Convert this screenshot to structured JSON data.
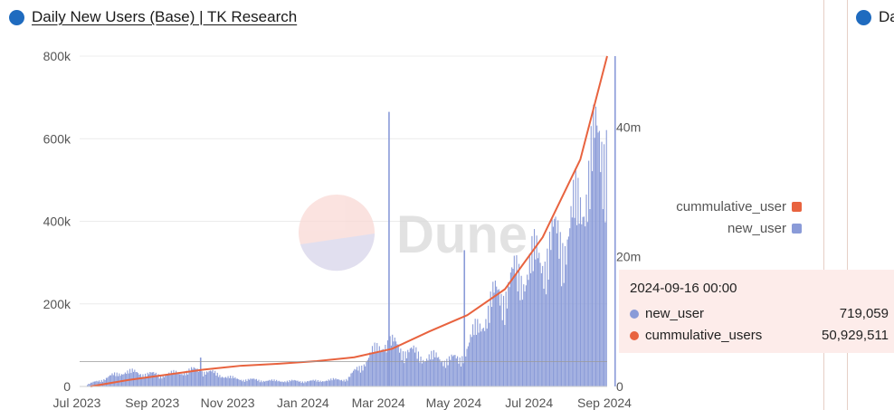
{
  "header": {
    "title": "Daily New Users (Base) | TK Research",
    "second_title_partial": "Da",
    "icon_color": "#1f6bbf"
  },
  "watermark": {
    "text": "Dune"
  },
  "legend": {
    "items": [
      {
        "label": "cummulative_user",
        "color": "#e8633f"
      },
      {
        "label": "new_user",
        "color": "#8a9bd8"
      }
    ]
  },
  "tooltip": {
    "date": "2024-09-16 00:00",
    "rows": [
      {
        "label": "new_user",
        "value": "719,059",
        "color": "#8a9bd8"
      },
      {
        "label": "cummulative_users",
        "value": "50,929,511",
        "color": "#e8633f"
      }
    ]
  },
  "chart_data": {
    "type": "bar",
    "title": "Daily New Users (Base) | TK Research",
    "x_ticks": [
      "Jul 2023",
      "Sep 2023",
      "Nov 2023",
      "Jan 2024",
      "Mar 2024",
      "May 2024",
      "Jul 2024",
      "Sep 2024"
    ],
    "y_left": {
      "ticks": [
        "0",
        "200k",
        "400k",
        "600k",
        "800k"
      ],
      "ylim": [
        0,
        800000
      ]
    },
    "y_right": {
      "ticks": [
        "0",
        "20m",
        "40m"
      ],
      "ylim": [
        0,
        50929511
      ]
    },
    "series": [
      {
        "name": "new_user",
        "type": "bar",
        "axis": "left",
        "color": "#8a9bd8",
        "x": [
          "2023-07",
          "2023-08",
          "2023-09",
          "2023-10",
          "2023-11",
          "2023-12",
          "2024-01",
          "2024-02",
          "2024-03",
          "2024-04",
          "2024-05",
          "2024-06",
          "2024-07",
          "2024-08",
          "2024-09"
        ],
        "values": [
          5000,
          40000,
          30000,
          45000,
          20000,
          15000,
          14000,
          20000,
          120000,
          80000,
          70000,
          240000,
          330000,
          420000,
          719059
        ],
        "spikes": [
          {
            "x": "2023-10",
            "value": 70000
          },
          {
            "x": "2024-03",
            "value": 665000
          },
          {
            "x": "2024-05",
            "value": 330000
          },
          {
            "x": "2024-09",
            "value": 800000
          }
        ]
      },
      {
        "name": "cummulative_users",
        "type": "line",
        "axis": "right",
        "color": "#e8633f",
        "x": [
          "2023-07",
          "2023-08",
          "2023-09",
          "2023-10",
          "2023-11",
          "2023-12",
          "2024-01",
          "2024-02",
          "2024-03",
          "2024-04",
          "2024-05",
          "2024-06",
          "2024-07",
          "2024-08",
          "2024-09"
        ],
        "values": [
          0,
          1000000,
          1800000,
          2600000,
          3200000,
          3500000,
          3900000,
          4500000,
          5800000,
          8500000,
          11000000,
          15000000,
          23000000,
          35000000,
          50929511
        ]
      }
    ],
    "reference_line": {
      "value": 60000
    },
    "legend_position": "right",
    "grid": true
  }
}
